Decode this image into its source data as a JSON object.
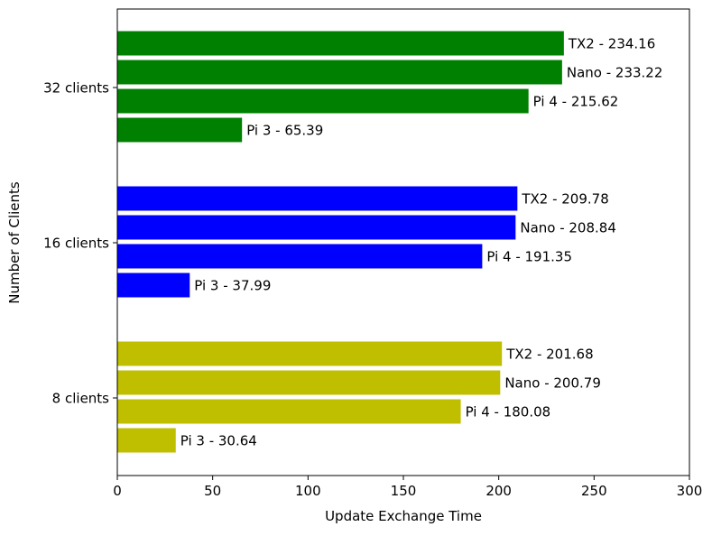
{
  "chart_data": {
    "type": "bar",
    "orientation": "horizontal",
    "xlabel": "Update Exchange Time",
    "ylabel": "Number of Clients",
    "xlim": [
      0,
      300
    ],
    "xticks": [
      "0",
      "50",
      "100",
      "150",
      "200",
      "250",
      "300"
    ],
    "xtick_values": [
      0,
      50,
      100,
      150,
      200,
      250,
      300
    ],
    "grid": false,
    "groups": [
      {
        "label": "8 clients",
        "color": "#bfbf00",
        "bars": [
          {
            "device": "TX2",
            "value": 201.68,
            "label": "TX2 - 201.68"
          },
          {
            "device": "Nano",
            "value": 200.79,
            "label": "Nano - 200.79"
          },
          {
            "device": "Pi 4",
            "value": 180.08,
            "label": "Pi 4 - 180.08"
          },
          {
            "device": "Pi 3",
            "value": 30.64,
            "label": "Pi 3 - 30.64"
          }
        ]
      },
      {
        "label": "16 clients",
        "color": "#0000ff",
        "bars": [
          {
            "device": "TX2",
            "value": 209.78,
            "label": "TX2 - 209.78"
          },
          {
            "device": "Nano",
            "value": 208.84,
            "label": "Nano - 208.84"
          },
          {
            "device": "Pi 4",
            "value": 191.35,
            "label": "Pi 4 - 191.35"
          },
          {
            "device": "Pi 3",
            "value": 37.99,
            "label": "Pi 3 - 37.99"
          }
        ]
      },
      {
        "label": "32 clients",
        "color": "#008000",
        "bars": [
          {
            "device": "TX2",
            "value": 234.16,
            "label": "TX2 - 234.16"
          },
          {
            "device": "Nano",
            "value": 233.22,
            "label": "Nano - 233.22"
          },
          {
            "device": "Pi 4",
            "value": 215.62,
            "label": "Pi 4 - 215.62"
          },
          {
            "device": "Pi 3",
            "value": 65.39,
            "label": "Pi 3 - 65.39"
          }
        ]
      }
    ]
  }
}
